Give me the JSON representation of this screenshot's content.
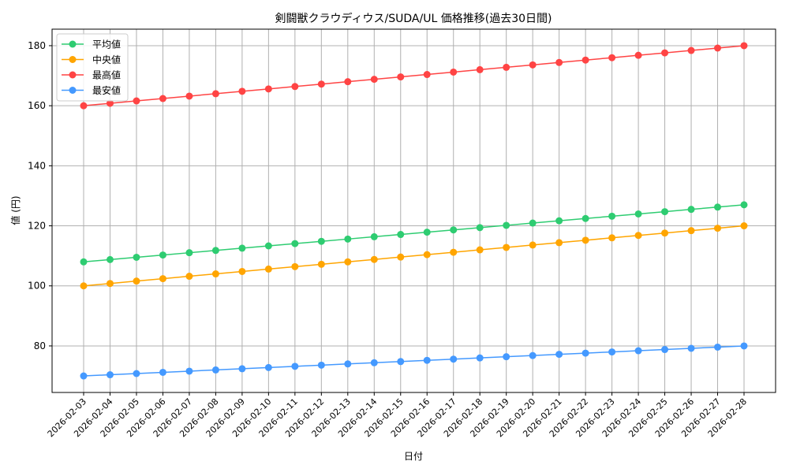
{
  "chart_data": {
    "type": "line",
    "title": "剣闘獣クラウディウス/SUDA/UL 価格推移(過去30日間)",
    "xlabel": "日付",
    "ylabel": "値 (円)",
    "ylim": [
      64.5,
      185.5
    ],
    "yticks": [
      80,
      100,
      120,
      140,
      160,
      180
    ],
    "grid": true,
    "legend_position": "top-left",
    "categories": [
      "2026-02-03",
      "2026-02-04",
      "2026-02-05",
      "2026-02-06",
      "2026-02-07",
      "2026-02-08",
      "2026-02-09",
      "2026-02-10",
      "2026-02-11",
      "2026-02-12",
      "2026-02-13",
      "2026-02-14",
      "2026-02-15",
      "2026-02-16",
      "2026-02-17",
      "2026-02-18",
      "2026-02-19",
      "2026-02-20",
      "2026-02-21",
      "2026-02-22",
      "2026-02-23",
      "2026-02-24",
      "2026-02-25",
      "2026-02-26",
      "2026-02-27",
      "2026-02-28"
    ],
    "series": [
      {
        "name": "平均値",
        "color": "#2ecc71",
        "values": [
          108.0,
          108.76,
          109.52,
          110.28,
          111.04,
          111.8,
          112.56,
          113.32,
          114.08,
          114.84,
          115.6,
          116.36,
          117.12,
          117.88,
          118.64,
          119.4,
          120.16,
          120.92,
          121.68,
          122.44,
          123.2,
          123.96,
          124.72,
          125.48,
          126.24,
          127.0
        ]
      },
      {
        "name": "中央値",
        "color": "#ffa500",
        "values": [
          100.0,
          100.8,
          101.6,
          102.4,
          103.2,
          104.0,
          104.8,
          105.6,
          106.4,
          107.2,
          108.0,
          108.8,
          109.6,
          110.4,
          111.2,
          112.0,
          112.8,
          113.6,
          114.4,
          115.2,
          116.0,
          116.8,
          117.6,
          118.4,
          119.2,
          120.0
        ]
      },
      {
        "name": "最高値",
        "color": "#ff4444",
        "values": [
          160.0,
          160.8,
          161.6,
          162.4,
          163.2,
          164.0,
          164.8,
          165.6,
          166.4,
          167.2,
          168.0,
          168.8,
          169.6,
          170.4,
          171.2,
          172.0,
          172.8,
          173.6,
          174.4,
          175.2,
          176.0,
          176.8,
          177.6,
          178.4,
          179.2,
          180.0
        ]
      },
      {
        "name": "最安値",
        "color": "#4499ff",
        "values": [
          70.0,
          70.4,
          70.8,
          71.2,
          71.6,
          72.0,
          72.4,
          72.8,
          73.2,
          73.6,
          74.0,
          74.4,
          74.8,
          75.2,
          75.6,
          76.0,
          76.4,
          76.8,
          77.2,
          77.6,
          78.0,
          78.4,
          78.8,
          79.2,
          79.6,
          80.0
        ]
      }
    ]
  }
}
